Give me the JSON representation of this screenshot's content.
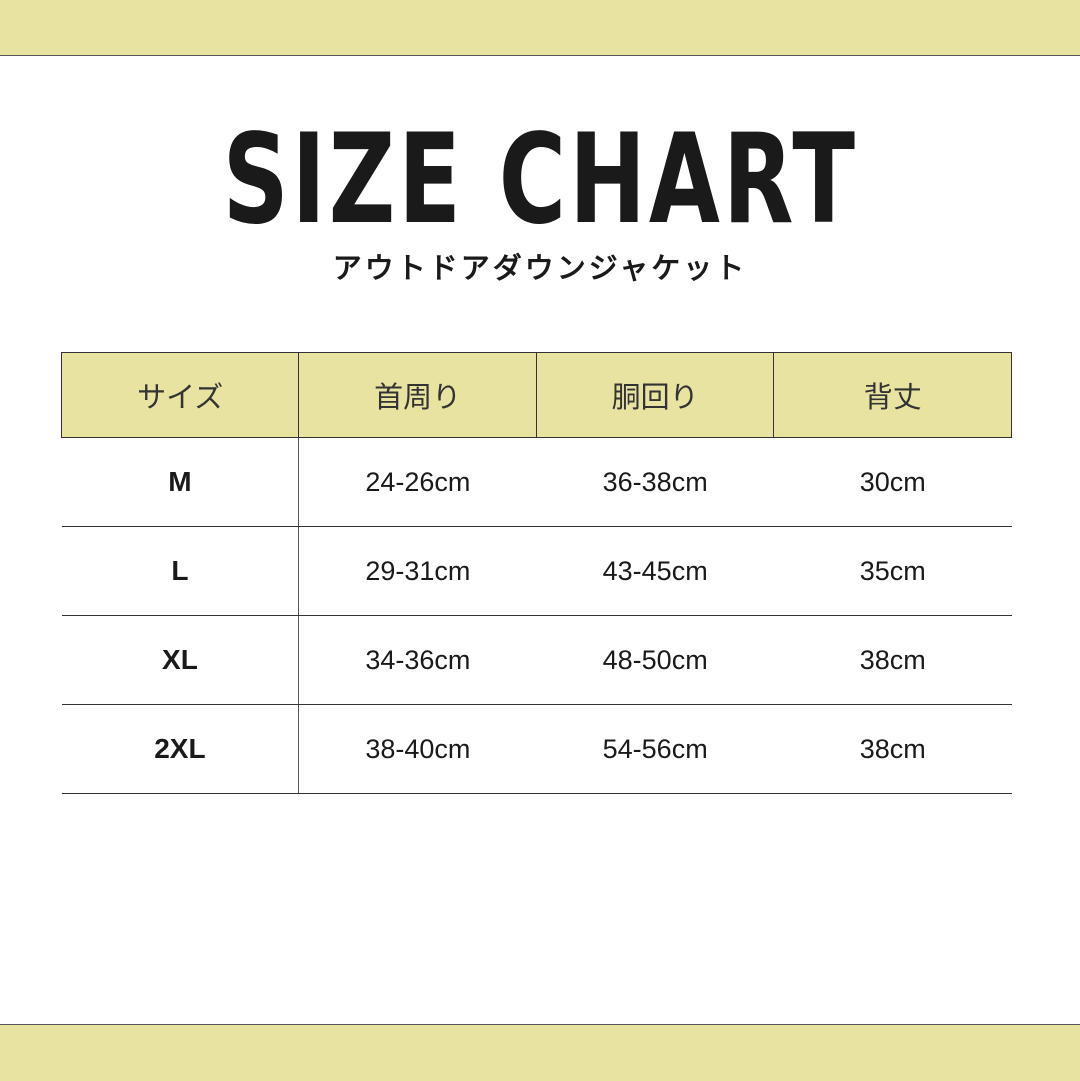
{
  "title": "SIZE CHART",
  "subtitle": "アウトドアダウンジャケット",
  "colors": {
    "accent": "#e8e3a1",
    "text": "#1a1a1a"
  },
  "table": {
    "headers": [
      "サイズ",
      "首周り",
      "胴回り",
      "背丈"
    ],
    "rows": [
      [
        "M",
        "24-26cm",
        "36-38cm",
        "30cm"
      ],
      [
        "L",
        "29-31cm",
        "43-45cm",
        "35cm"
      ],
      [
        "XL",
        "34-36cm",
        "48-50cm",
        "38cm"
      ],
      [
        "2XL",
        "38-40cm",
        "54-56cm",
        "38cm"
      ]
    ]
  }
}
